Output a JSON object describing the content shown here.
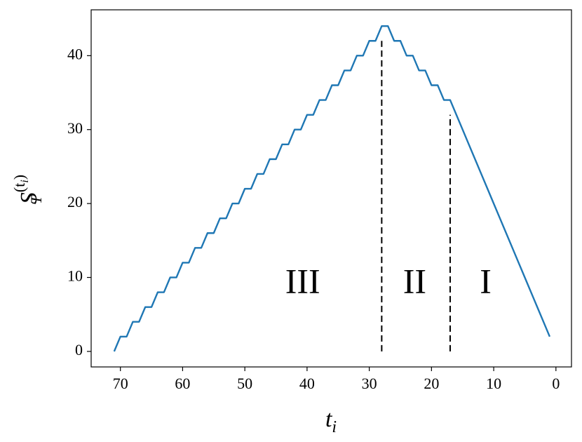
{
  "chart_data": {
    "type": "line",
    "xlabel": {
      "base": "t",
      "sub": "i"
    },
    "ylabel": {
      "base": "S",
      "sub": "T",
      "sup": "(t",
      "sup_sub": "i",
      "sup_end": ")"
    },
    "x": [
      71,
      70,
      69,
      68,
      67,
      66,
      65,
      64,
      63,
      62,
      61,
      60,
      59,
      58,
      57,
      56,
      55,
      54,
      53,
      52,
      51,
      50,
      49,
      48,
      47,
      46,
      45,
      44,
      43,
      42,
      41,
      40,
      39,
      38,
      37,
      36,
      35,
      34,
      33,
      32,
      31,
      30,
      29,
      28,
      27,
      26,
      25,
      24,
      23,
      22,
      21,
      20,
      19,
      18,
      17,
      16,
      15,
      14,
      13,
      12,
      11,
      10,
      9,
      8,
      7,
      6,
      5,
      4,
      3,
      2,
      1
    ],
    "series": [
      {
        "color": "#1f77b4",
        "values": [
          0,
          2,
          2,
          4,
          4,
          6,
          6,
          8,
          8,
          10,
          10,
          12,
          12,
          14,
          14,
          16,
          16,
          18,
          18,
          20,
          20,
          22,
          22,
          24,
          24,
          26,
          26,
          28,
          28,
          30,
          30,
          32,
          32,
          34,
          34,
          36,
          36,
          38,
          38,
          40,
          40,
          42,
          42,
          44,
          44,
          42,
          42,
          40,
          40,
          38,
          38,
          36,
          36,
          34,
          34,
          32,
          30,
          28,
          26,
          24,
          22,
          20,
          18,
          16,
          14,
          12,
          10,
          8,
          6,
          4,
          2
        ]
      }
    ],
    "xlim": [
      74.7,
      -2.5
    ],
    "ylim": [
      -2.1,
      46.2
    ],
    "xticks": [
      70,
      60,
      50,
      40,
      30,
      20,
      10,
      0
    ],
    "yticks": [
      0,
      10,
      20,
      30,
      40
    ],
    "vlines": [
      {
        "x": 28,
        "ymin": 0,
        "ymax": 42
      },
      {
        "x": 17,
        "ymin": 0,
        "ymax": 32
      }
    ],
    "annotations": [
      {
        "text": "III",
        "x": 40.7,
        "y": 9
      },
      {
        "text": "II",
        "x": 22.7,
        "y": 9
      },
      {
        "text": "I",
        "x": 11.3,
        "y": 9
      }
    ]
  }
}
